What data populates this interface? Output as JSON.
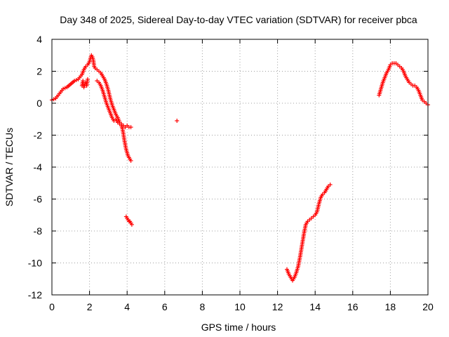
{
  "chart_data": {
    "type": "scatter",
    "title": "Day 348 of 2025, Sidereal Day-to-day VTEC variation (SDTVAR) for receiver pbca",
    "xlabel": "GPS time / hours",
    "ylabel": "SDTVAR / TECUs",
    "xlim": [
      0,
      20
    ],
    "ylim": [
      -12,
      4
    ],
    "xticks": [
      0,
      2,
      4,
      6,
      8,
      10,
      12,
      14,
      16,
      18,
      20
    ],
    "yticks": [
      -12,
      -10,
      -8,
      -6,
      -4,
      -2,
      0,
      2,
      4
    ],
    "xtick_labels": [
      "0",
      "2",
      "4",
      "6",
      "8",
      "10",
      "12",
      "14",
      "16",
      "18",
      "20"
    ],
    "ytick_labels": [
      "-12",
      "-10",
      "-8",
      "-6",
      "-4",
      "-2",
      "0",
      "2",
      "4"
    ],
    "grid": true,
    "marker": "+",
    "color": "#ff0000",
    "series": [
      {
        "name": "SDTVAR",
        "segments": [
          {
            "x": [
              0.0,
              0.2,
              0.4,
              0.6,
              0.8,
              1.0,
              1.2,
              1.4,
              1.6,
              1.7,
              1.8,
              1.9,
              2.0,
              2.05,
              2.1,
              2.15,
              2.2,
              2.25,
              2.3,
              2.4,
              2.5,
              2.6,
              2.7,
              2.8,
              2.9,
              3.0,
              3.1,
              3.2,
              3.3,
              3.4,
              3.5,
              3.6,
              3.7,
              3.8,
              3.9,
              4.0,
              4.1,
              4.2
            ],
            "y": [
              0.2,
              0.3,
              0.6,
              0.9,
              1.0,
              1.2,
              1.4,
              1.5,
              1.8,
              2.1,
              2.3,
              2.4,
              2.6,
              2.8,
              3.0,
              2.9,
              2.7,
              2.3,
              2.2,
              2.1,
              2.0,
              1.9,
              1.7,
              1.5,
              1.2,
              0.8,
              0.3,
              -0.1,
              -0.4,
              -0.7,
              -0.9,
              -1.2,
              -1.3,
              -1.4,
              -1.5,
              -1.4,
              -1.5,
              -1.5
            ]
          },
          {
            "x": [
              1.6,
              1.65,
              1.7,
              1.75,
              1.8,
              1.85,
              1.9
            ],
            "y": [
              1.1,
              1.4,
              1.0,
              1.2,
              1.3,
              1.1,
              1.5
            ]
          },
          {
            "x": [
              2.4,
              2.5,
              2.6,
              2.7,
              2.8,
              2.9,
              3.0,
              3.1,
              3.2,
              3.3,
              3.4,
              3.5,
              3.6
            ],
            "y": [
              1.4,
              1.3,
              1.1,
              0.8,
              0.4,
              0.0,
              -0.3,
              -0.6,
              -0.9,
              -1.1,
              -1.0,
              -1.2,
              -1.3
            ]
          },
          {
            "x": [
              3.7,
              3.75,
              3.8,
              3.85,
              3.9,
              3.95,
              4.0,
              4.05,
              4.1,
              4.15,
              4.2
            ],
            "y": [
              -1.4,
              -1.6,
              -1.9,
              -2.3,
              -2.6,
              -2.9,
              -3.1,
              -3.3,
              -3.4,
              -3.5,
              -3.6
            ]
          },
          {
            "x": [
              3.95,
              4.0,
              4.05,
              4.1,
              4.15,
              4.2,
              4.25
            ],
            "y": [
              -7.1,
              -7.2,
              -7.3,
              -7.4,
              -7.4,
              -7.5,
              -7.6
            ]
          },
          {
            "x": [
              6.65
            ],
            "y": [
              -1.1
            ]
          },
          {
            "x": [
              12.5,
              12.6,
              12.7,
              12.8,
              12.9,
              13.0,
              13.1,
              13.2,
              13.3,
              13.4,
              13.5,
              13.6,
              13.7,
              13.8,
              13.9,
              14.0,
              14.1,
              14.2,
              14.3,
              14.4,
              14.5,
              14.6,
              14.7,
              14.8
            ],
            "y": [
              -10.4,
              -10.7,
              -10.9,
              -11.1,
              -10.9,
              -10.6,
              -10.2,
              -9.6,
              -8.9,
              -8.2,
              -7.6,
              -7.4,
              -7.3,
              -7.2,
              -7.1,
              -7.0,
              -6.8,
              -6.3,
              -5.9,
              -5.7,
              -5.6,
              -5.4,
              -5.2,
              -5.1
            ]
          },
          {
            "x": [
              17.4,
              17.5,
              17.6,
              17.7,
              17.8,
              17.9,
              18.0,
              18.1,
              18.2,
              18.3,
              18.4,
              18.5,
              18.6,
              18.7,
              18.8,
              18.9,
              19.0,
              19.1,
              19.2,
              19.3,
              19.4,
              19.5,
              19.6,
              19.7,
              19.8,
              19.9,
              20.0
            ],
            "y": [
              0.5,
              0.9,
              1.3,
              1.6,
              1.9,
              2.1,
              2.4,
              2.5,
              2.5,
              2.5,
              2.4,
              2.3,
              2.2,
              2.0,
              1.7,
              1.5,
              1.3,
              1.2,
              1.1,
              1.1,
              1.0,
              0.8,
              0.5,
              0.2,
              0.1,
              0.0,
              -0.1
            ]
          }
        ]
      }
    ]
  }
}
